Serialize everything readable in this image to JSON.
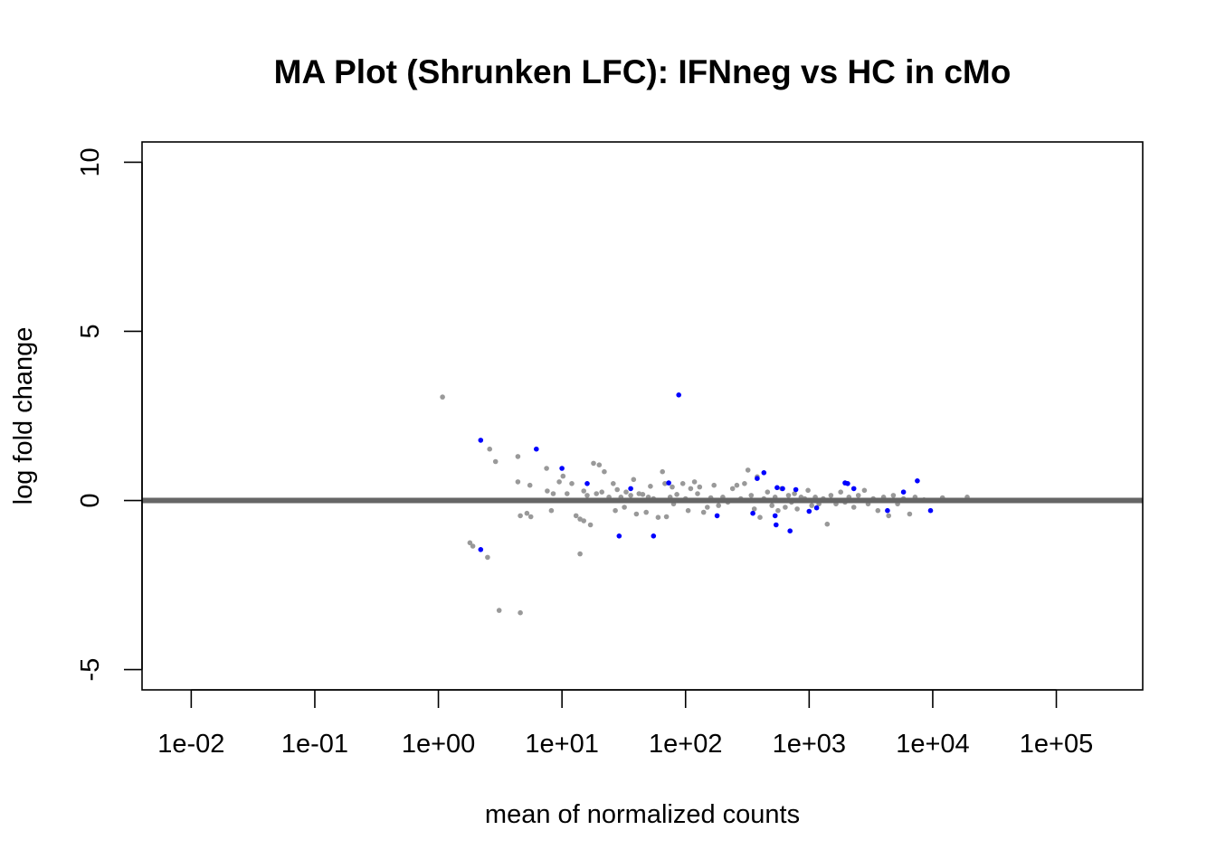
{
  "chart_data": {
    "type": "scatter",
    "title": "MA Plot (Shrunken LFC): IFNneg vs HC in cMo",
    "xlabel": "mean of normalized counts",
    "ylabel": "log fold change",
    "x_scale": "log10",
    "xlim": [
      0.004,
      500000
    ],
    "ylim": [
      -5.6,
      10.6
    ],
    "x_ticks": [
      0.01,
      0.1,
      1,
      10,
      100,
      1000,
      10000,
      100000
    ],
    "x_tick_labels": [
      "1e-02",
      "1e-01",
      "1e+00",
      "1e+01",
      "1e+02",
      "1e+03",
      "1e+04",
      "1e+05"
    ],
    "y_ticks": [
      -5,
      0,
      5,
      10
    ],
    "y_tick_labels": [
      "-5",
      "0",
      "5",
      "10"
    ],
    "grid": false,
    "legend": "none",
    "reference_line": {
      "y": 0,
      "color": "#666666"
    },
    "colors": {
      "not_significant": "#999999",
      "significant": "#0000ff"
    },
    "series": [
      {
        "significant": false,
        "points": [
          [
            1.08,
            3.06
          ],
          [
            2.6,
            1.52
          ],
          [
            2.9,
            1.15
          ],
          [
            4.4,
            1.3
          ],
          [
            4.4,
            0.55
          ],
          [
            1.8,
            -1.25
          ],
          [
            1.9,
            -1.35
          ],
          [
            2.5,
            -1.68
          ],
          [
            3.1,
            -3.25
          ],
          [
            4.6,
            -3.32
          ],
          [
            4.6,
            -0.45
          ],
          [
            5.2,
            -0.38
          ],
          [
            5.6,
            -0.48
          ],
          [
            5.5,
            0.45
          ],
          [
            7.5,
            0.95
          ],
          [
            7.6,
            0.28
          ],
          [
            8.2,
            -0.3
          ],
          [
            8.5,
            0.2
          ],
          [
            9.5,
            0.55
          ],
          [
            10.2,
            0.72
          ],
          [
            11,
            0.2
          ],
          [
            12,
            0.5
          ],
          [
            13,
            -0.45
          ],
          [
            14,
            -0.55
          ],
          [
            14,
            -1.58
          ],
          [
            15,
            0.28
          ],
          [
            15,
            -0.6
          ],
          [
            16,
            0.15
          ],
          [
            17,
            -0.72
          ],
          [
            18,
            1.1
          ],
          [
            19,
            0.2
          ],
          [
            20,
            1.05
          ],
          [
            21,
            0.25
          ],
          [
            22,
            0.85
          ],
          [
            24,
            0.1
          ],
          [
            26,
            0.5
          ],
          [
            27,
            -0.3
          ],
          [
            28,
            0.32
          ],
          [
            30,
            0.1
          ],
          [
            32,
            -0.2
          ],
          [
            33,
            0.25
          ],
          [
            36,
            0.15
          ],
          [
            38,
            0.62
          ],
          [
            40,
            -0.4
          ],
          [
            42,
            0.2
          ],
          [
            45,
            0.18
          ],
          [
            48,
            -0.35
          ],
          [
            50,
            0.1
          ],
          [
            52,
            0.42
          ],
          [
            55,
            0.05
          ],
          [
            60,
            -0.5
          ],
          [
            65,
            0.85
          ],
          [
            68,
            0.5
          ],
          [
            70,
            -0.48
          ],
          [
            75,
            0.1
          ],
          [
            78,
            0.4
          ],
          [
            80,
            -0.1
          ],
          [
            85,
            0.18
          ],
          [
            95,
            0.5
          ],
          [
            100,
            0.05
          ],
          [
            105,
            -0.3
          ],
          [
            110,
            0.35
          ],
          [
            118,
            0.55
          ],
          [
            125,
            0.2
          ],
          [
            130,
            0.4
          ],
          [
            140,
            -0.35
          ],
          [
            150,
            -0.2
          ],
          [
            160,
            0.08
          ],
          [
            170,
            0.45
          ],
          [
            185,
            -0.15
          ],
          [
            200,
            0.1
          ],
          [
            220,
            -0.05
          ],
          [
            240,
            0.35
          ],
          [
            260,
            0.45
          ],
          [
            280,
            0.05
          ],
          [
            300,
            0.5
          ],
          [
            320,
            0.9
          ],
          [
            340,
            0.15
          ],
          [
            360,
            -0.25
          ],
          [
            380,
            0.7
          ],
          [
            400,
            -0.5
          ],
          [
            430,
            0.05
          ],
          [
            460,
            0.25
          ],
          [
            500,
            -0.15
          ],
          [
            530,
            0.1
          ],
          [
            560,
            -0.3
          ],
          [
            600,
            0.35
          ],
          [
            640,
            -0.2
          ],
          [
            680,
            0.15
          ],
          [
            720,
            -0.05
          ],
          [
            760,
            0.2
          ],
          [
            800,
            -0.25
          ],
          [
            860,
            0.1
          ],
          [
            920,
            0.05
          ],
          [
            980,
            0.3
          ],
          [
            1050,
            -0.15
          ],
          [
            1120,
            0.1
          ],
          [
            1200,
            -0.1
          ],
          [
            1300,
            0.05
          ],
          [
            1400,
            -0.7
          ],
          [
            1500,
            0.15
          ],
          [
            1650,
            -0.1
          ],
          [
            1800,
            0.25
          ],
          [
            1950,
            -0.05
          ],
          [
            2100,
            0.1
          ],
          [
            2300,
            -0.2
          ],
          [
            2500,
            0.15
          ],
          [
            2800,
            0.3
          ],
          [
            3000,
            -0.1
          ],
          [
            3300,
            0.05
          ],
          [
            3600,
            -0.3
          ],
          [
            4000,
            0.1
          ],
          [
            4400,
            -0.45
          ],
          [
            4800,
            0.15
          ],
          [
            5200,
            -0.1
          ],
          [
            5800,
            0.05
          ],
          [
            6500,
            -0.4
          ],
          [
            7200,
            0.1
          ],
          [
            8500,
            0.02
          ],
          [
            12000,
            0.08
          ],
          [
            19000,
            0.1
          ]
        ]
      },
      {
        "significant": true,
        "points": [
          [
            2.2,
            1.78
          ],
          [
            2.2,
            -1.45
          ],
          [
            6.2,
            1.52
          ],
          [
            10,
            0.95
          ],
          [
            16,
            0.5
          ],
          [
            29,
            -1.05
          ],
          [
            36,
            0.35
          ],
          [
            55,
            -1.05
          ],
          [
            73,
            0.52
          ],
          [
            88,
            3.12
          ],
          [
            180,
            -0.45
          ],
          [
            350,
            -0.38
          ],
          [
            380,
            0.65
          ],
          [
            430,
            0.82
          ],
          [
            530,
            -0.45
          ],
          [
            540,
            -0.72
          ],
          [
            550,
            0.38
          ],
          [
            610,
            0.35
          ],
          [
            700,
            -0.9
          ],
          [
            780,
            0.32
          ],
          [
            1000,
            -0.32
          ],
          [
            1150,
            -0.22
          ],
          [
            1950,
            0.52
          ],
          [
            2050,
            0.5
          ],
          [
            2300,
            0.35
          ],
          [
            4300,
            -0.3
          ],
          [
            5800,
            0.25
          ],
          [
            7500,
            0.58
          ],
          [
            9600,
            -0.3
          ]
        ]
      }
    ]
  }
}
